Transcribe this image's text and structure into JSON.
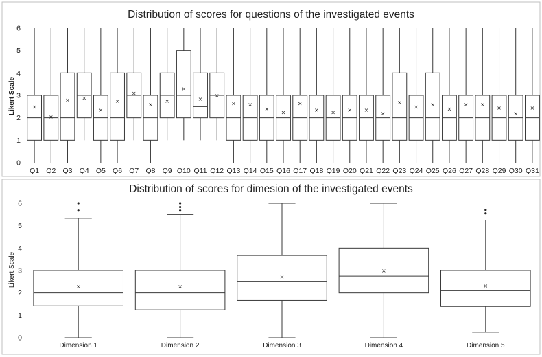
{
  "chart_data": [
    {
      "type": "box",
      "title": "Distribution of scores for questions of the investigated events",
      "ylabel": "Likert Scale",
      "ylim": [
        0,
        6
      ],
      "yticks": [
        0,
        1,
        2,
        3,
        4,
        5,
        6
      ],
      "categories": [
        "Q1",
        "Q2",
        "Q3",
        "Q4",
        "Q5",
        "Q6",
        "Q7",
        "Q8",
        "Q9",
        "Q10",
        "Q11",
        "Q12",
        "Q13",
        "Q14",
        "Q15",
        "Q16",
        "Q17",
        "Q18",
        "Q19",
        "Q20",
        "Q21",
        "Q22",
        "Q23",
        "Q24",
        "Q25",
        "Q26",
        "Q27",
        "Q28",
        "Q29",
        "Q30",
        "Q31"
      ],
      "boxes": [
        {
          "min": 0,
          "q1": 1,
          "median": 2,
          "q3": 3,
          "max": 6,
          "mean": 2.5
        },
        {
          "min": 0,
          "q1": 1,
          "median": 2,
          "q3": 3,
          "max": 6,
          "mean": 2.05
        },
        {
          "min": 0,
          "q1": 1,
          "median": 2,
          "q3": 4,
          "max": 6,
          "mean": 2.8
        },
        {
          "min": 1,
          "q1": 2,
          "median": 3,
          "q3": 4,
          "max": 6,
          "mean": 2.9
        },
        {
          "min": 0,
          "q1": 1,
          "median": 2,
          "q3": 3,
          "max": 6,
          "mean": 2.35
        },
        {
          "min": 0,
          "q1": 1,
          "median": 2,
          "q3": 4,
          "max": 6,
          "mean": 2.75
        },
        {
          "min": 1,
          "q1": 2,
          "median": 3,
          "q3": 4,
          "max": 6,
          "mean": 3.1
        },
        {
          "min": 0,
          "q1": 1,
          "median": 2,
          "q3": 3,
          "max": 6,
          "mean": 2.6
        },
        {
          "min": 1,
          "q1": 2,
          "median": 3,
          "q3": 4,
          "max": 6,
          "mean": 2.75
        },
        {
          "min": 1,
          "q1": 2,
          "median": 3,
          "q3": 5,
          "max": 6,
          "mean": 3.3
        },
        {
          "min": 1,
          "q1": 2,
          "median": 2.5,
          "q3": 4,
          "max": 6,
          "mean": 2.85
        },
        {
          "min": 1,
          "q1": 2,
          "median": 3,
          "q3": 4,
          "max": 6,
          "mean": 3.0
        },
        {
          "min": 0,
          "q1": 1,
          "median": 2,
          "q3": 3,
          "max": 6,
          "mean": 2.65
        },
        {
          "min": 0,
          "q1": 1,
          "median": 2,
          "q3": 3,
          "max": 6,
          "mean": 2.6
        },
        {
          "min": 0,
          "q1": 1,
          "median": 2,
          "q3": 3,
          "max": 6,
          "mean": 2.4
        },
        {
          "min": 0,
          "q1": 1,
          "median": 2,
          "q3": 3,
          "max": 6,
          "mean": 2.25
        },
        {
          "min": 0,
          "q1": 1,
          "median": 2,
          "q3": 3,
          "max": 6,
          "mean": 2.65
        },
        {
          "min": 0,
          "q1": 1,
          "median": 2,
          "q3": 3,
          "max": 6,
          "mean": 2.35
        },
        {
          "min": 0,
          "q1": 1,
          "median": 2,
          "q3": 3,
          "max": 6,
          "mean": 2.25
        },
        {
          "min": 0,
          "q1": 1,
          "median": 2,
          "q3": 3,
          "max": 6,
          "mean": 2.35
        },
        {
          "min": 0,
          "q1": 1,
          "median": 2,
          "q3": 3,
          "max": 6,
          "mean": 2.35
        },
        {
          "min": 0,
          "q1": 1,
          "median": 2,
          "q3": 3,
          "max": 6,
          "mean": 2.2
        },
        {
          "min": 0,
          "q1": 1,
          "median": 2,
          "q3": 4,
          "max": 6,
          "mean": 2.7
        },
        {
          "min": 0,
          "q1": 1,
          "median": 2,
          "q3": 3,
          "max": 6,
          "mean": 2.5
        },
        {
          "min": 0,
          "q1": 1,
          "median": 2,
          "q3": 4,
          "max": 6,
          "mean": 2.6
        },
        {
          "min": 0,
          "q1": 1,
          "median": 2,
          "q3": 3,
          "max": 6,
          "mean": 2.4
        },
        {
          "min": 0,
          "q1": 1,
          "median": 2,
          "q3": 3,
          "max": 6,
          "mean": 2.6
        },
        {
          "min": 0,
          "q1": 1,
          "median": 2,
          "q3": 3,
          "max": 6,
          "mean": 2.6
        },
        {
          "min": 0,
          "q1": 1,
          "median": 2,
          "q3": 3,
          "max": 6,
          "mean": 2.45
        },
        {
          "min": 0,
          "q1": 1,
          "median": 2,
          "q3": 3,
          "max": 6,
          "mean": 2.2
        },
        {
          "min": 0,
          "q1": 1,
          "median": 2,
          "q3": 3,
          "max": 6,
          "mean": 2.45
        }
      ]
    },
    {
      "type": "box",
      "title": "Distribution of scores for dimesion of the investigated events",
      "ylabel": "Likert Scale",
      "ylim": [
        0,
        6
      ],
      "yticks": [
        0,
        1,
        2,
        3,
        4,
        5,
        6
      ],
      "categories": [
        "Dimension 1",
        "Dimension 2",
        "Dimension 3",
        "Dimension 4",
        "Dimension 5"
      ],
      "boxes": [
        {
          "min": 0,
          "q1": 1.43,
          "median": 2,
          "q3": 3,
          "max": 5.33,
          "mean": 2.3,
          "outliers": [
            5.67,
            6
          ]
        },
        {
          "min": 0,
          "q1": 1.25,
          "median": 2,
          "q3": 3,
          "max": 5.5,
          "mean": 2.3,
          "outliers": [
            5.67,
            5.83,
            6
          ]
        },
        {
          "min": 0,
          "q1": 1.67,
          "median": 2.5,
          "q3": 3.67,
          "max": 6,
          "mean": 2.72,
          "outliers": []
        },
        {
          "min": 0,
          "q1": 2,
          "median": 2.75,
          "q3": 4,
          "max": 6,
          "mean": 3.0,
          "outliers": []
        },
        {
          "min": 0.25,
          "q1": 1.4,
          "median": 2.1,
          "q3": 3,
          "max": 5.25,
          "mean": 2.33,
          "outliers": [
            5.55,
            5.7
          ]
        }
      ]
    }
  ]
}
